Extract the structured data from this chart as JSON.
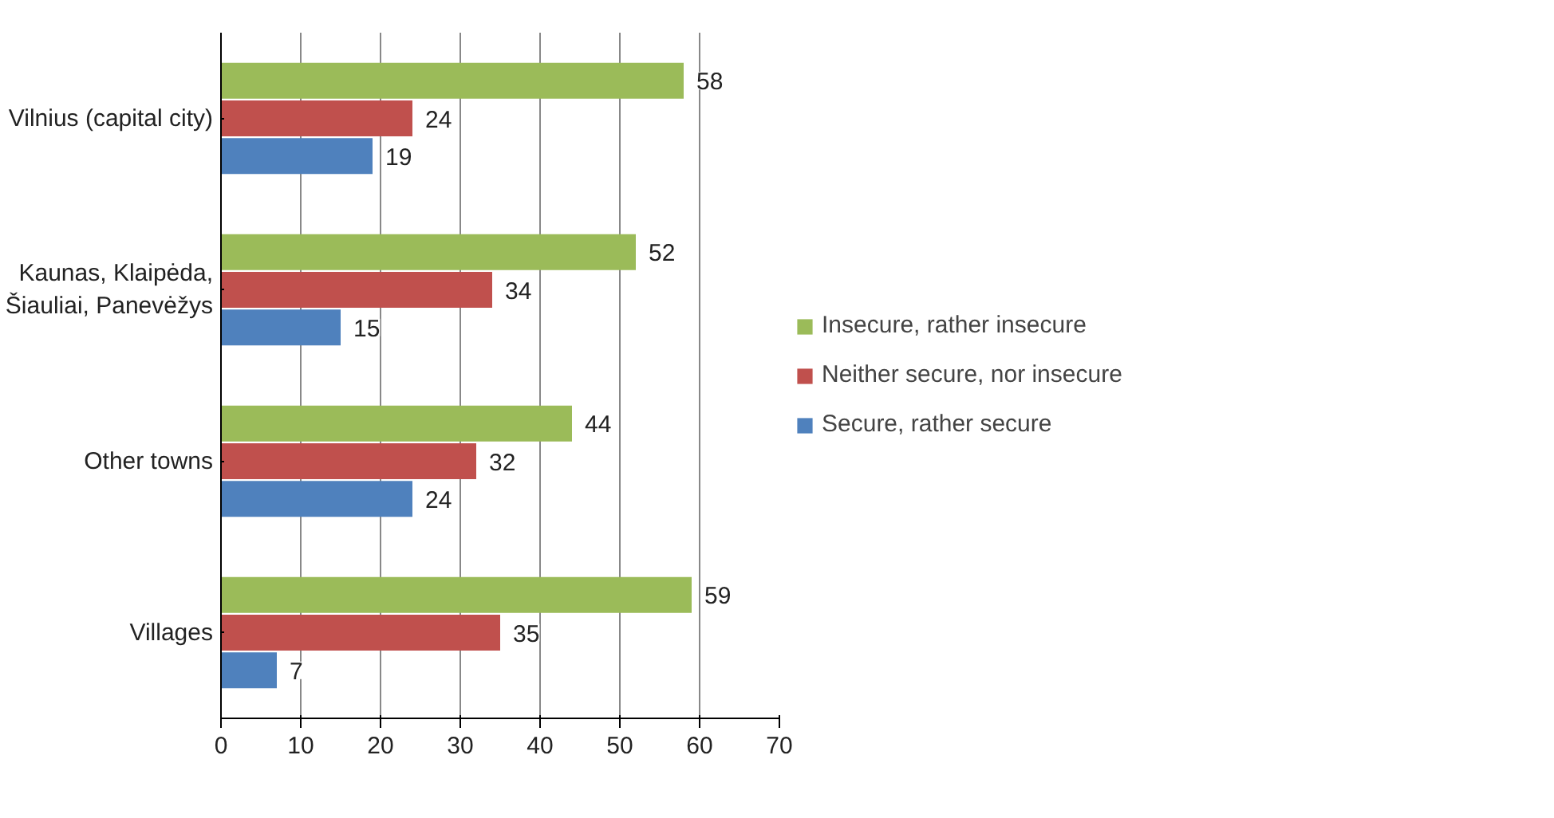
{
  "chart_data": {
    "type": "bar",
    "orientation": "horizontal",
    "categories": [
      "Vilnius (capital city)",
      "Kaunas, Klaipėda, Šiauliai, Panevėžys",
      "Other towns",
      "Villages"
    ],
    "series": [
      {
        "name": "Insecure, rather insecure",
        "color": "#9bbb59",
        "values": [
          58,
          52,
          44,
          59
        ]
      },
      {
        "name": "Neither secure, nor insecure",
        "color": "#c0504d",
        "values": [
          24,
          34,
          32,
          35
        ]
      },
      {
        "name": "Secure, rather secure",
        "color": "#4f81bd",
        "values": [
          19,
          15,
          24,
          7
        ]
      }
    ],
    "xlim": [
      0,
      70
    ],
    "xticks": [
      0,
      10,
      20,
      30,
      40,
      50,
      60,
      70
    ],
    "grid": "x",
    "legend": "right",
    "data_labels": true
  }
}
